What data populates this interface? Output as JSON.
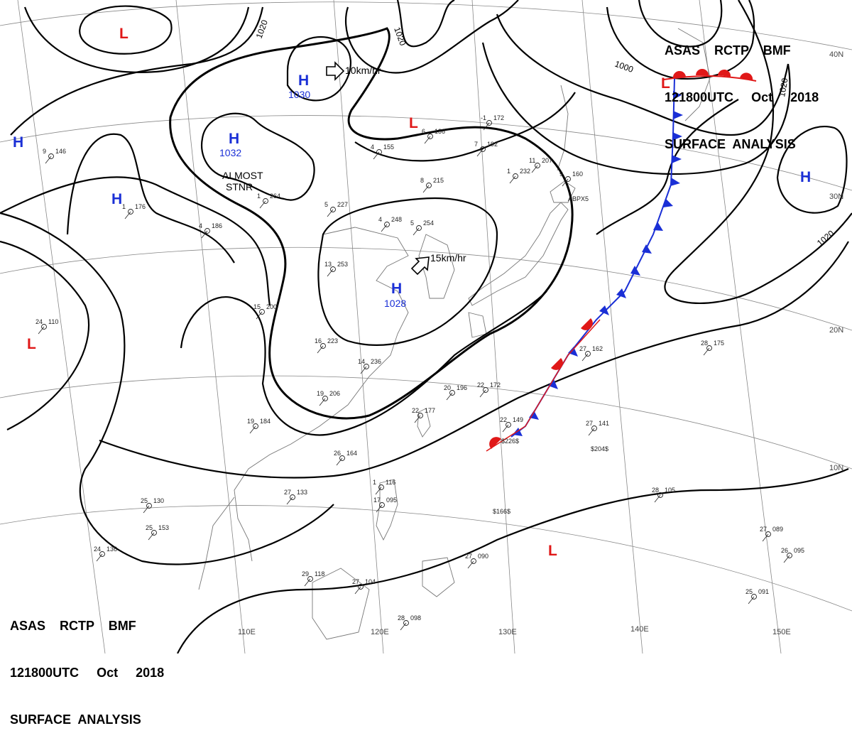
{
  "header": {
    "line1": "ASAS    RCTP    BMF",
    "line2": "121800UTC     Oct     2018",
    "line3": "SURFACE  ANALYSIS"
  },
  "map": {
    "lat_labels": [
      "40N",
      "30N",
      "20N",
      "10N"
    ],
    "lon_labels": [
      "110E",
      "120E",
      "130E",
      "140E",
      "150E"
    ],
    "isobar_labels": [
      "1020",
      "1020",
      "1000",
      "1020",
      "1020"
    ],
    "pressure_centers": [
      {
        "type": "H",
        "value": "1030"
      },
      {
        "type": "H",
        "value": "1032"
      },
      {
        "type": "H",
        "value": "1028"
      },
      {
        "type": "H",
        "value": ""
      },
      {
        "type": "H",
        "value": ""
      },
      {
        "type": "H",
        "value": ""
      },
      {
        "type": "L",
        "value": ""
      },
      {
        "type": "L",
        "value": ""
      },
      {
        "type": "L",
        "value": ""
      },
      {
        "type": "L",
        "value": ""
      },
      {
        "type": "L",
        "value": ""
      }
    ],
    "motion": [
      {
        "text": "10km/hr"
      },
      {
        "text": "15km/hr"
      }
    ],
    "notes": [
      "ALMOST",
      "STNR"
    ],
    "stations": [
      {
        "t": "24",
        "p": "110"
      },
      {
        "t": "25",
        "p": "130"
      },
      {
        "t": "27",
        "p": "133"
      },
      {
        "t": "26",
        "p": "164"
      },
      {
        "t": "19",
        "p": "184"
      },
      {
        "t": "22",
        "p": "177"
      },
      {
        "t": "20",
        "p": "196"
      },
      {
        "t": "22",
        "p": "172"
      },
      {
        "t": "27",
        "p": "162"
      },
      {
        "t": "28",
        "p": "175"
      },
      {
        "t": "27",
        "p": "141"
      },
      {
        "t": "28",
        "p": "105"
      },
      {
        "t": "27",
        "p": "089"
      },
      {
        "t": "26",
        "p": "095"
      },
      {
        "t": "25",
        "p": "091"
      },
      {
        "t": "27",
        "p": "090"
      },
      {
        "t": "27",
        "p": "104"
      },
      {
        "t": "29",
        "p": "118"
      },
      {
        "t": "28",
        "p": "098"
      },
      {
        "t": "24",
        "p": "136"
      },
      {
        "t": "25",
        "p": "153"
      },
      {
        "t": "16",
        "p": "223"
      },
      {
        "t": "14",
        "p": "236"
      },
      {
        "t": "19",
        "p": "206"
      },
      {
        "t": "15",
        "p": "200"
      },
      {
        "t": "13",
        "p": "253"
      },
      {
        "t": "4",
        "p": "248"
      },
      {
        "t": "5",
        "p": "254"
      },
      {
        "t": "5",
        "p": "227"
      },
      {
        "t": "-1",
        "p": "172"
      },
      {
        "t": "1",
        "p": "232"
      },
      {
        "t": "4",
        "p": "155"
      },
      {
        "t": "6",
        "p": "136"
      },
      {
        "t": "7",
        "p": "192"
      },
      {
        "t": "8",
        "p": "215"
      },
      {
        "t": "1",
        "p": "264"
      },
      {
        "t": "4",
        "p": "186"
      },
      {
        "t": "1",
        "p": "176"
      },
      {
        "t": "9",
        "p": "146"
      },
      {
        "t": "11",
        "p": "207"
      },
      {
        "t": "9",
        "p": "160"
      },
      {
        "t": "1",
        "p": "116"
      },
      {
        "t": "17",
        "p": "095"
      },
      {
        "t": "22",
        "p": "149"
      }
    ],
    "small_labels": [
      "$226$",
      "$204$",
      "$166$",
      "ABPX5"
    ],
    "colors": {
      "high": "#1a2fd6",
      "low": "#e01818",
      "cold_front": "#1a2fd6",
      "warm_front": "#e01818",
      "isobar": "#000000",
      "coast": "#777777",
      "grid": "#888888"
    }
  }
}
